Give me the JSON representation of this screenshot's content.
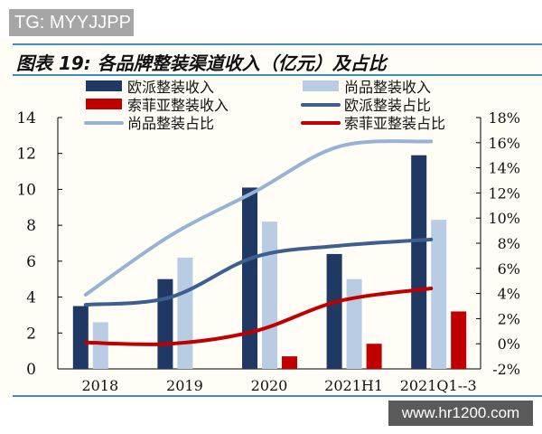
{
  "watermark_top": "TG: MYYJJPP",
  "watermark_bottom": "www.hr1200.com",
  "chart_data": {
    "type": "bar",
    "title": "图表 19: 各品牌整装渠道收入（亿元）及占比",
    "categories": [
      "2018",
      "2019",
      "2020",
      "2021H1",
      "2021Q1--3"
    ],
    "y_left": {
      "range": [
        0,
        14
      ],
      "ticks": [
        "0",
        "2",
        "4",
        "6",
        "8",
        "10",
        "12",
        "14"
      ]
    },
    "y_right": {
      "range": [
        -2,
        18
      ],
      "unit": "%",
      "ticks": [
        "-2%",
        "0%",
        "2%",
        "4%",
        "6%",
        "8%",
        "10%",
        "12%",
        "14%",
        "16%",
        "18%"
      ]
    },
    "grid": false,
    "legend_placement": "top",
    "bar_series": [
      {
        "name": "欧派整装收入",
        "color": "#1f3864",
        "values": [
          3.5,
          5.0,
          10.1,
          6.4,
          11.9
        ]
      },
      {
        "name": "尚品整装收入",
        "color": "#b8cce4",
        "values": [
          2.6,
          6.2,
          8.2,
          5.0,
          8.3
        ]
      },
      {
        "name": "索菲亚整装收入",
        "color": "#c00000",
        "values": [
          null,
          null,
          0.7,
          1.4,
          3.2
        ]
      }
    ],
    "line_series": [
      {
        "name": "欧派整装占比",
        "color": "#3d5f8f",
        "axis": "right",
        "values": [
          3.1,
          3.7,
          6.9,
          7.8,
          8.3
        ]
      },
      {
        "name": "尚品整装占比",
        "color": "#95b3d7",
        "axis": "right",
        "values": [
          3.9,
          8.6,
          12.1,
          15.7,
          16.1
        ]
      },
      {
        "name": "索菲亚整装占比",
        "color": "#c00000",
        "axis": "right",
        "values": [
          0.1,
          0.0,
          1.0,
          3.4,
          4.4
        ]
      }
    ]
  }
}
